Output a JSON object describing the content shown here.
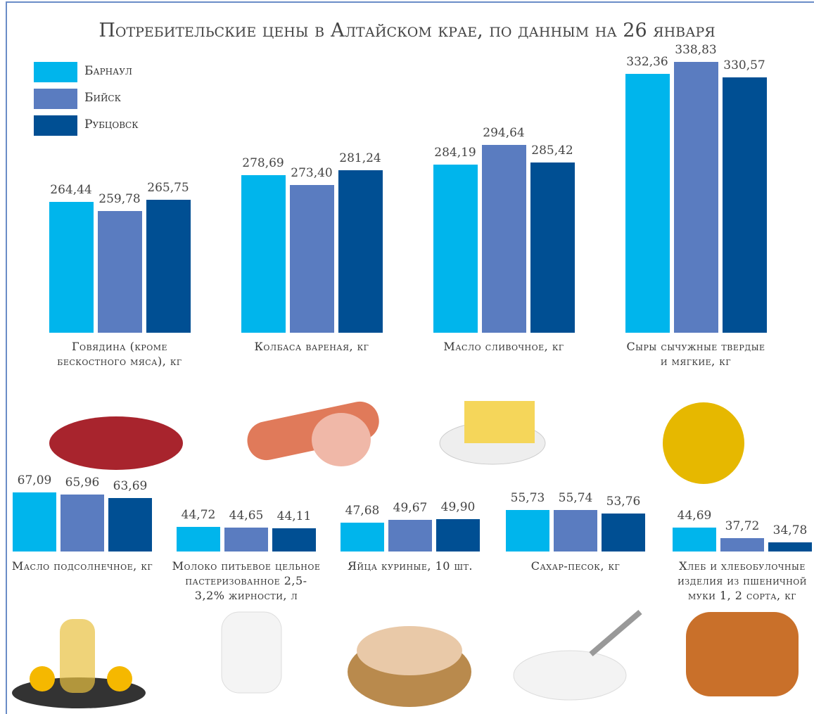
{
  "chart_data": [
    {
      "type": "bar",
      "title": "Потребительские цены в Алтайском крае, по данным на 26 января",
      "categories": [
        "Говядина (кроме бескостного мяса), кг",
        "Колбаса вареная, кг",
        "Масло сливочное, кг",
        "Сыры сычужные твердые и мягкие, кг"
      ],
      "series": [
        {
          "name": "Барнаул",
          "color": "#00b5ec",
          "values": [
            264.44,
            278.69,
            284.19,
            332.36
          ],
          "value_labels": [
            "264,44",
            "278,69",
            "284,19",
            "332,36"
          ]
        },
        {
          "name": "Бийск",
          "color": "#5a7cc0",
          "values": [
            259.78,
            273.4,
            294.64,
            338.83
          ],
          "value_labels": [
            "259,78",
            "273,40",
            "294,64",
            "338,83"
          ]
        },
        {
          "name": "Рубцовск",
          "color": "#004f93",
          "values": [
            265.75,
            281.24,
            285.42,
            330.57
          ],
          "value_labels": [
            "265,75",
            "281,24",
            "285,42",
            "330,57"
          ]
        }
      ],
      "ylim": [
        195,
        340
      ]
    },
    {
      "type": "bar",
      "categories": [
        "Масло подсолнечное, кг",
        "Молоко питьевое цельное пастеризованное 2,5-3,2% жирности, л",
        "Яйца куриные, 10 шт.",
        "Сахар-песок, кг",
        "Хлеб и хлебобулочные изделия из пшеничной муки 1, 2 сорта, кг"
      ],
      "series": [
        {
          "color": "#00b5ec",
          "values": [
            67.09,
            44.72,
            47.68,
            55.73,
            44.69
          ],
          "value_labels": [
            "67,09",
            "44,72",
            "47,68",
            "55,73",
            "44,69"
          ]
        },
        {
          "color": "#5a7cc0",
          "values": [
            65.96,
            44.65,
            49.67,
            55.74,
            37.72
          ],
          "value_labels": [
            "65,96",
            "44,65",
            "49,67",
            "55,74",
            "37,72"
          ]
        },
        {
          "color": "#004f93",
          "values": [
            63.69,
            44.11,
            49.9,
            53.76,
            34.78
          ],
          "value_labels": [
            "63,69",
            "44,11",
            "49,90",
            "53,76",
            "34,78"
          ]
        }
      ],
      "ylim": [
        29,
        70
      ]
    }
  ]
}
